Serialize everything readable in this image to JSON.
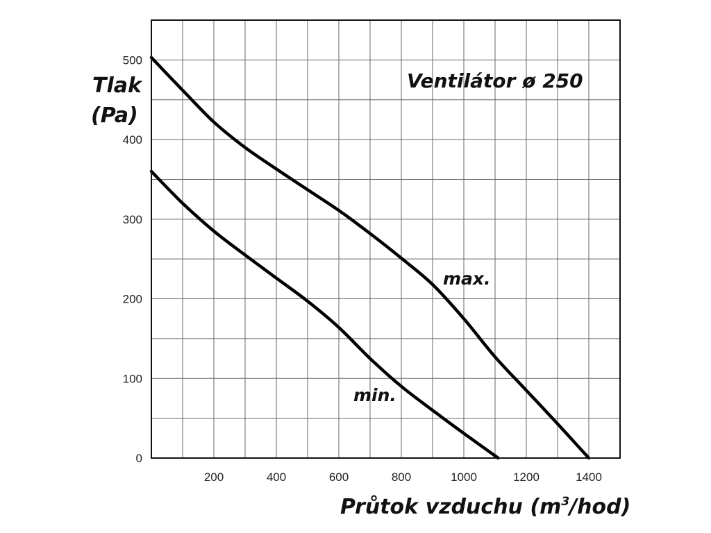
{
  "chart_data": {
    "type": "line",
    "title": "Ventilátor ø 250",
    "ylabel_line1": "Tlak",
    "ylabel_line2": "(Pa)",
    "xlabel_main": "Průtok vzduchu (m",
    "xlabel_sup": "3",
    "xlabel_end": "/hod)",
    "xlim": [
      0,
      1500
    ],
    "ylim": [
      0,
      550
    ],
    "x_ticks": [
      200,
      400,
      600,
      800,
      1000,
      1200,
      1400
    ],
    "y_ticks": [
      0,
      100,
      200,
      300,
      400,
      500
    ],
    "grid": true,
    "series": [
      {
        "name": "max.",
        "x": [
          0,
          100,
          200,
          300,
          400,
          500,
          600,
          700,
          800,
          900,
          1000,
          1100,
          1200,
          1300,
          1400
        ],
        "y": [
          503,
          462,
          422,
          390,
          363,
          337,
          311,
          282,
          251,
          218,
          175,
          127,
          85,
          43,
          0
        ]
      },
      {
        "name": "min.",
        "x": [
          0,
          100,
          200,
          300,
          400,
          500,
          600,
          700,
          800,
          900,
          1000,
          1110
        ],
        "y": [
          360,
          320,
          285,
          255,
          226,
          197,
          164,
          125,
          90,
          60,
          31,
          0
        ]
      }
    ]
  }
}
